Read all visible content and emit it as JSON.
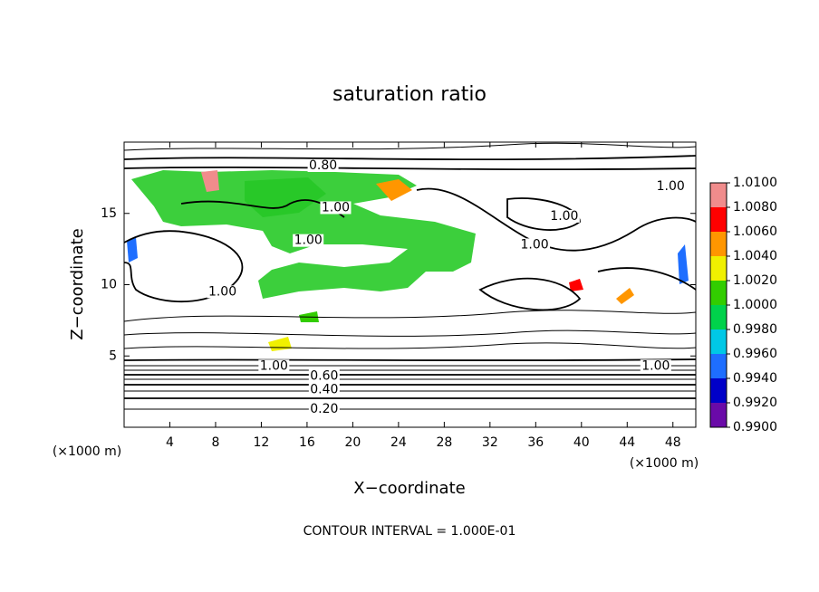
{
  "chart_data": {
    "type": "contour",
    "title": "saturation ratio",
    "x_label": "X−coordinate",
    "y_label": "Z−coordinate",
    "x_unit": "(×1000 m)",
    "y_unit": "(×1000 m)",
    "xlim": [
      0,
      50
    ],
    "ylim": [
      0,
      20
    ],
    "xticks": [
      4,
      8,
      12,
      16,
      20,
      24,
      28,
      32,
      36,
      40,
      44,
      48
    ],
    "yticks": [
      5,
      10,
      15
    ],
    "contour_interval": "CONTOUR INTERVAL = 1.000E-01",
    "contour_labels": [
      {
        "x": 17.4,
        "y": 18.35,
        "value": 0.8,
        "label": "0.80"
      },
      {
        "x": 38.5,
        "y": 14.8,
        "value": 1,
        "label": "1.00"
      },
      {
        "x": 47.8,
        "y": 16.9,
        "value": 1,
        "label": "1.00"
      },
      {
        "x": 35.9,
        "y": 12.8,
        "value": 1,
        "label": "1.00"
      },
      {
        "x": 16.1,
        "y": 13.1,
        "value": 1,
        "label": "1.00"
      },
      {
        "x": 18.5,
        "y": 15.4,
        "value": 1,
        "label": "1.00"
      },
      {
        "x": 8.6,
        "y": 9.5,
        "value": 1,
        "label": "1.00"
      },
      {
        "x": 13.1,
        "y": 4.3,
        "value": 1,
        "label": "1.00"
      },
      {
        "x": 46.5,
        "y": 4.3,
        "value": 1,
        "label": "1.00"
      },
      {
        "x": 17.5,
        "y": 3.6,
        "value": 0.6,
        "label": "0.60"
      },
      {
        "x": 17.5,
        "y": 2.65,
        "value": 0.4,
        "label": "0.40"
      },
      {
        "x": 17.5,
        "y": 1.27,
        "value": 0.2,
        "label": "0.20"
      }
    ],
    "colorbar": {
      "ticks": [
        {
          "value": 0.99,
          "label": "0.9900"
        },
        {
          "value": 0.992,
          "label": "0.9920"
        },
        {
          "value": 0.994,
          "label": "0.9940"
        },
        {
          "value": 0.996,
          "label": "0.9960"
        },
        {
          "value": 0.998,
          "label": "0.9980"
        },
        {
          "value": 1,
          "label": "1.0000"
        },
        {
          "value": 1.002,
          "label": "1.0020"
        },
        {
          "value": 1.004,
          "label": "1.0040"
        },
        {
          "value": 1.006,
          "label": "1.0060"
        },
        {
          "value": 1.008,
          "label": "1.0080"
        },
        {
          "value": 1.01,
          "label": "1.0100"
        }
      ],
      "colors": [
        "#6a0aa8",
        "#0000c8",
        "#1e6eff",
        "#00c8e6",
        "#00d24b",
        "#32cd00",
        "#f0f000",
        "#ff9600",
        "#ff0000",
        "#f08c8c"
      ]
    }
  }
}
